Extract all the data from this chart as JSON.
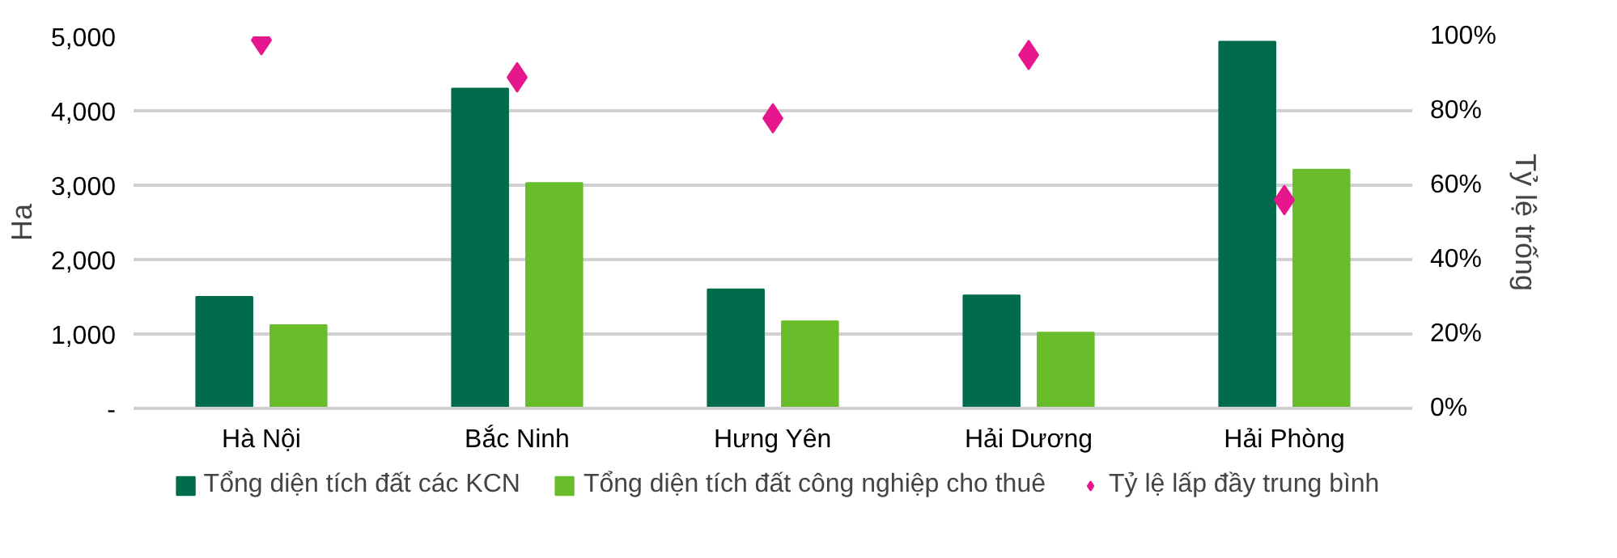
{
  "chart_data": {
    "type": "bar",
    "ylabel": "Ha",
    "y2label": "Tỷ lệ trống",
    "categories": [
      "Hà Nội",
      "Bắc Ninh",
      "Hưng Yên",
      "Hải Dương",
      "Hải Phòng"
    ],
    "series": [
      {
        "name": "Tổng diện tích đất các KCN",
        "color": "#006b4d",
        "values": [
          1500,
          4300,
          1600,
          1520,
          4930
        ]
      },
      {
        "name": "Tổng diện tích đất công nghiệp cho thuê",
        "color": "#6abd2a",
        "values": [
          1120,
          3030,
          1170,
          1020,
          3210
        ]
      },
      {
        "name": "Tỷ lệ lấp đầy trung bình",
        "type": "scatter",
        "axis": "y2",
        "marker": "diamond",
        "color": "#e6168c",
        "values": [
          99,
          89,
          78,
          95,
          56
        ]
      }
    ],
    "ylim": [
      0,
      5000
    ],
    "yticks": [
      {
        "value": 0,
        "label": "-"
      },
      {
        "value": 1000,
        "label": "1,000"
      },
      {
        "value": 2000,
        "label": "2,000"
      },
      {
        "value": 3000,
        "label": "3,000"
      },
      {
        "value": 4000,
        "label": "4,000"
      },
      {
        "value": 5000,
        "label": "5,000"
      }
    ],
    "y2lim": [
      0,
      100
    ],
    "y2ticks": [
      {
        "value": 0,
        "label": "0%"
      },
      {
        "value": 20,
        "label": "20%"
      },
      {
        "value": 40,
        "label": "40%"
      },
      {
        "value": 60,
        "label": "60%"
      },
      {
        "value": 80,
        "label": "80%"
      },
      {
        "value": 100,
        "label": "100%"
      }
    ],
    "grid": "y",
    "legend": "bottom"
  }
}
